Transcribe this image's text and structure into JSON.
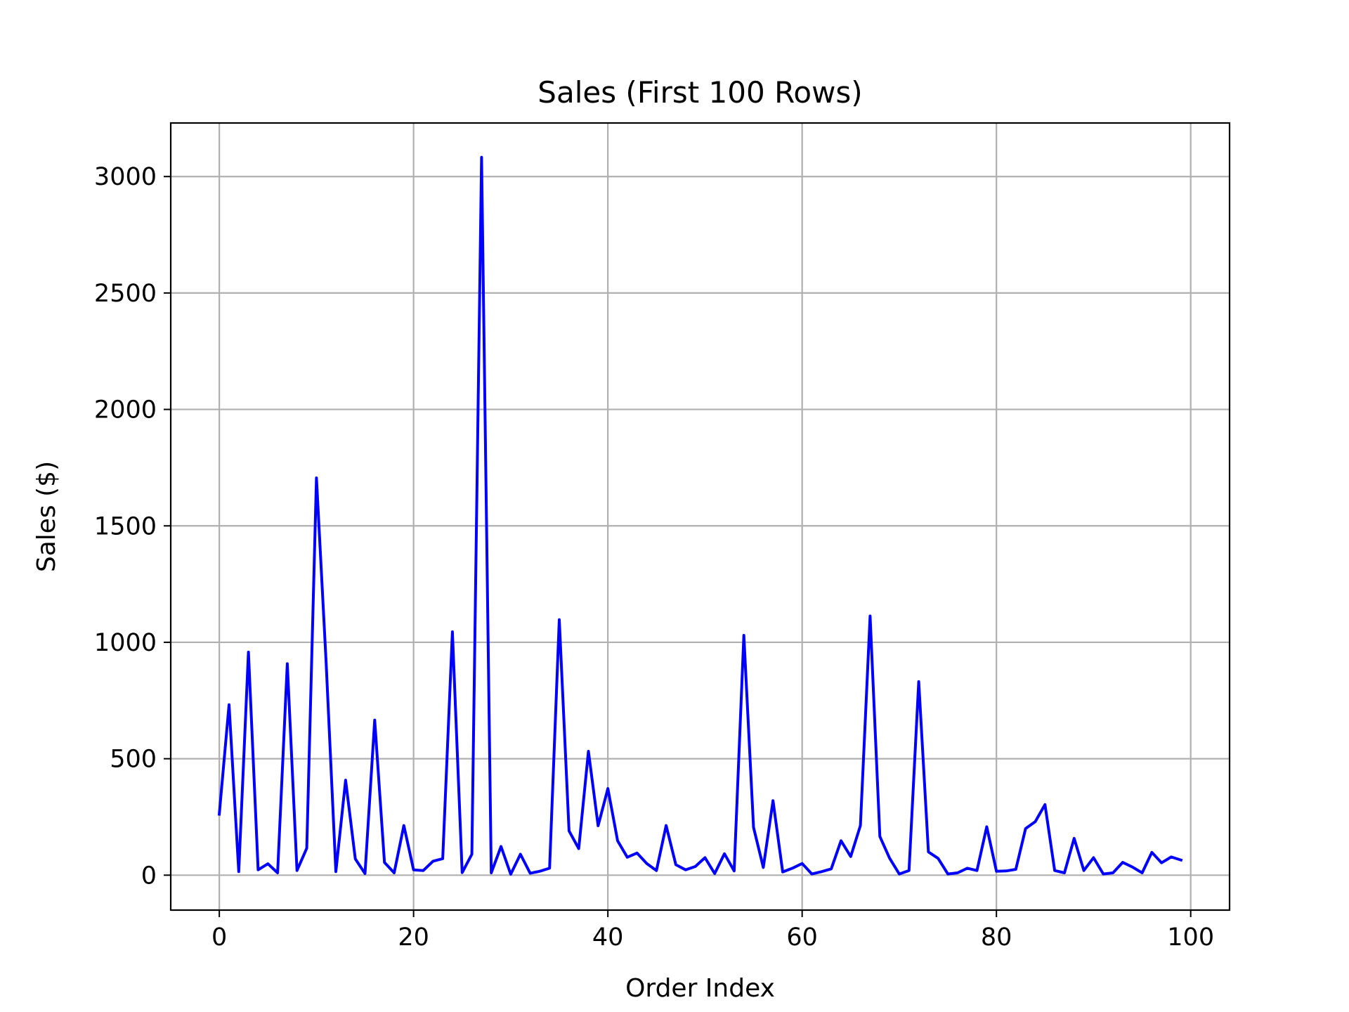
{
  "chart_data": {
    "type": "line",
    "title": "Sales (First 100 Rows)",
    "xlabel": "Order Index",
    "ylabel": "Sales ($)",
    "xlim": [
      -5,
      104
    ],
    "ylim": [
      -150,
      3230
    ],
    "xticks": [
      0,
      20,
      40,
      60,
      80,
      100
    ],
    "yticks": [
      0,
      500,
      1000,
      1500,
      2000,
      2500,
      3000
    ],
    "grid": true,
    "line_color": "#0000ff",
    "series": [
      {
        "x": [
          0,
          1,
          2,
          3,
          4,
          5,
          6,
          7,
          8,
          9,
          10,
          11,
          12,
          13,
          14,
          15,
          16,
          17,
          18,
          19,
          20,
          21,
          22,
          23,
          24,
          25,
          26,
          27,
          28,
          29,
          30,
          31,
          32,
          33,
          34,
          35,
          36,
          37,
          38,
          39,
          40,
          41,
          42,
          43,
          44,
          45,
          46,
          47,
          48,
          49,
          50,
          51,
          52,
          53,
          54,
          55,
          56,
          57,
          58,
          59,
          60,
          61,
          62,
          63,
          64,
          65,
          66,
          67,
          68,
          69,
          70,
          71,
          72,
          73,
          74,
          75,
          76,
          77,
          78,
          79,
          80,
          81,
          82,
          83,
          84,
          85,
          86,
          87,
          88,
          89,
          90,
          91,
          92,
          93,
          94,
          95,
          96,
          97,
          98,
          99
        ],
        "values": [
          262,
          732,
          15,
          958,
          23,
          49,
          10,
          908,
          20,
          116,
          1706,
          912,
          15,
          408,
          70,
          7,
          666,
          55,
          10,
          213,
          23,
          20,
          60,
          71,
          1045,
          11,
          90,
          3083,
          10,
          123,
          4,
          90,
          8,
          17,
          30,
          1097,
          190,
          114,
          532,
          212,
          372,
          148,
          77,
          95,
          50,
          20,
          213,
          45,
          23,
          37,
          75,
          7,
          92,
          18,
          1030,
          205,
          33,
          320,
          14,
          30,
          50,
          5,
          15,
          27,
          148,
          80,
          213,
          1113,
          166,
          73,
          5,
          20,
          831,
          100,
          72,
          5,
          10,
          30,
          20,
          208,
          17,
          18,
          25,
          200,
          230,
          303,
          20,
          10,
          158,
          20,
          75,
          5,
          10,
          55,
          35,
          10,
          98,
          53,
          78,
          65
        ]
      }
    ]
  }
}
